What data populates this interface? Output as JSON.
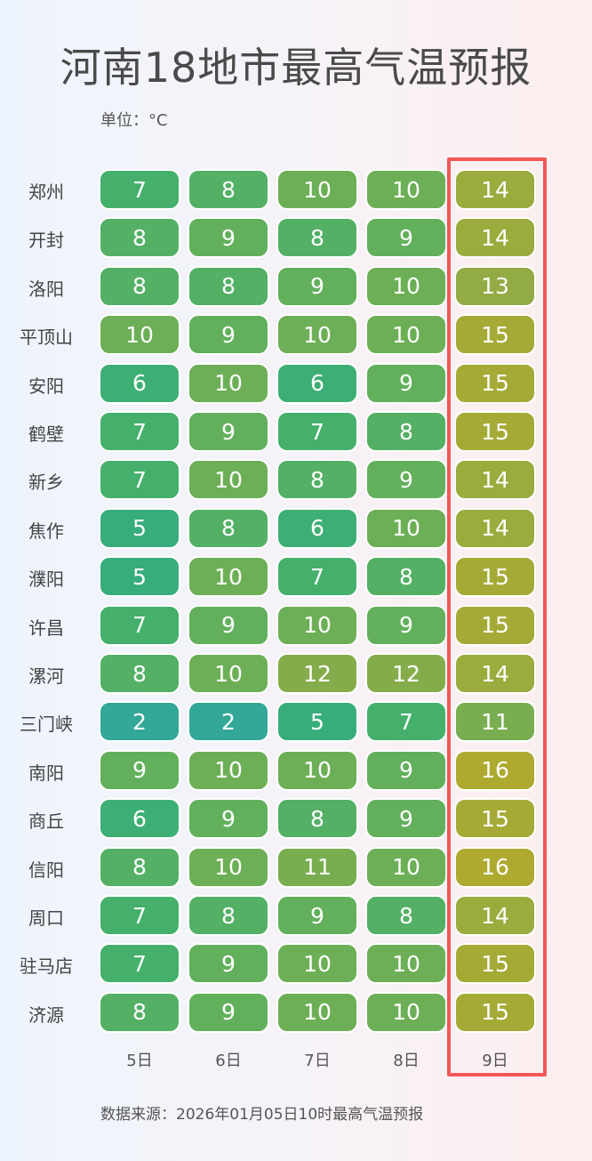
{
  "chart_data": {
    "type": "heatmap",
    "title": "河南18地市最高气温预报",
    "unit_label": "单位：°C",
    "x_categories": [
      "5日",
      "6日",
      "7日",
      "8日",
      "9日"
    ],
    "y_categories": [
      "郑州",
      "开封",
      "洛阳",
      "平顶山",
      "安阳",
      "鹤壁",
      "新乡",
      "焦作",
      "濮阳",
      "许昌",
      "漯河",
      "三门峡",
      "南阳",
      "商丘",
      "信阳",
      "周口",
      "驻马店",
      "济源"
    ],
    "values": [
      [
        7,
        8,
        10,
        10,
        14
      ],
      [
        8,
        9,
        8,
        9,
        14
      ],
      [
        8,
        8,
        9,
        10,
        13
      ],
      [
        10,
        9,
        10,
        10,
        15
      ],
      [
        6,
        10,
        6,
        9,
        15
      ],
      [
        7,
        9,
        7,
        8,
        15
      ],
      [
        7,
        10,
        8,
        9,
        14
      ],
      [
        5,
        8,
        6,
        10,
        14
      ],
      [
        5,
        10,
        7,
        8,
        15
      ],
      [
        7,
        9,
        10,
        9,
        15
      ],
      [
        8,
        10,
        12,
        12,
        14
      ],
      [
        2,
        2,
        5,
        7,
        11
      ],
      [
        9,
        10,
        10,
        9,
        16
      ],
      [
        6,
        9,
        8,
        9,
        15
      ],
      [
        8,
        10,
        11,
        10,
        16
      ],
      [
        7,
        8,
        9,
        8,
        14
      ],
      [
        7,
        9,
        10,
        10,
        15
      ],
      [
        8,
        9,
        10,
        10,
        15
      ]
    ],
    "color_scale": [
      [
        2,
        "#33a898"
      ],
      [
        5,
        "#38ad7c"
      ],
      [
        7,
        "#44b06c"
      ],
      [
        9,
        "#62b05c"
      ],
      [
        11,
        "#78ad50"
      ],
      [
        13,
        "#92ab45"
      ],
      [
        16,
        "#aeaa2f"
      ]
    ],
    "highlight_column": "9日",
    "highlight_color": "#f25757",
    "source": "数据来源：2026年01月05日10时最高气温预报"
  }
}
